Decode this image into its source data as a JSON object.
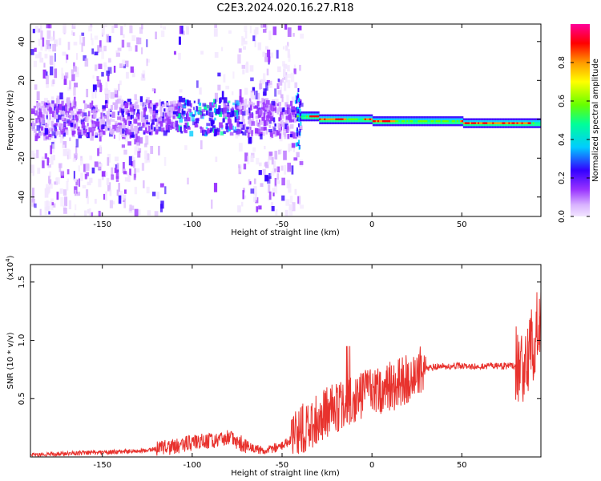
{
  "title": "C2E3.2024.020.16.27.R18",
  "chart_data": [
    {
      "type": "heatmap",
      "xlabel": "Height of straight line (km)",
      "ylabel": "Frequency (Hz)",
      "xlim": [
        -190,
        94
      ],
      "ylim": [
        -50,
        49
      ],
      "xticks": [
        -150,
        -100,
        -50,
        0,
        50
      ],
      "yticks": [
        -40,
        -20,
        0,
        20,
        40
      ],
      "colorbar": {
        "label": "Normalized spectral amplitude",
        "range": [
          0.0,
          1.0
        ],
        "ticks": [
          "0.0",
          "0.2",
          "0.4",
          "0.6",
          "0.8"
        ],
        "colormap": "rainbow",
        "colors": [
          "#f2e6ff",
          "#d9b3ff",
          "#9933ff",
          "#3300ff",
          "#00ccff",
          "#00ff99",
          "#66ff00",
          "#ffff00",
          "#ff9900",
          "#ff0000",
          "#ff0099"
        ]
      },
      "grid": false
    },
    {
      "type": "line",
      "xlabel": "Height of straight line (km)",
      "ylabel": "SNR (10 * v/v)",
      "y_multiplier": "(x10",
      "y_multiplier_exp": "4",
      "y_multiplier_close": ")",
      "xlim": [
        -190,
        94
      ],
      "ylim": [
        0.0,
        1.65
      ],
      "xticks": [
        -150,
        -100,
        -50,
        0,
        50
      ],
      "yticks": [
        0.5,
        1.0,
        1.5
      ],
      "color": "#e8322d",
      "series": [
        {
          "x": [
            -190,
            -170,
            -150,
            -130,
            -120,
            -110,
            -100,
            -90,
            -80,
            -70,
            -60,
            -50,
            -45,
            -40,
            -35,
            -30,
            -25,
            -20,
            -15,
            -10,
            -5,
            0,
            5,
            10,
            15,
            20,
            25,
            30,
            40,
            50,
            60,
            70,
            80,
            85,
            88,
            90,
            92,
            94
          ],
          "y": [
            0.02,
            0.03,
            0.04,
            0.05,
            0.07,
            0.09,
            0.12,
            0.14,
            0.16,
            0.1,
            0.05,
            0.1,
            0.15,
            0.22,
            0.28,
            0.33,
            0.38,
            0.42,
            0.47,
            0.5,
            0.53,
            0.55,
            0.58,
            0.6,
            0.63,
            0.68,
            0.72,
            0.76,
            0.78,
            0.78,
            0.78,
            0.78,
            0.78,
            0.8,
            0.9,
            1.0,
            1.1,
            1.3
          ]
        }
      ]
    }
  ]
}
